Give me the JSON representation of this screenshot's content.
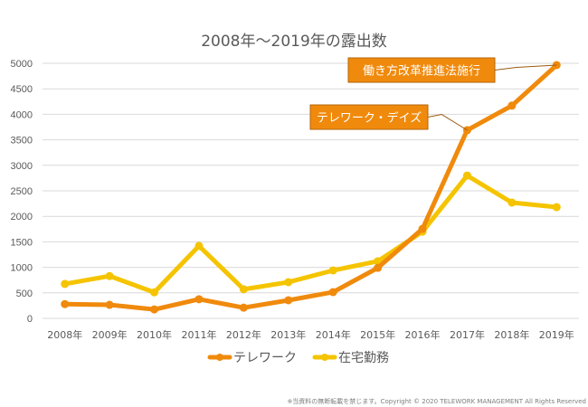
{
  "chart_data": {
    "type": "line",
    "title": "2008年～2019年の露出数",
    "xlabel": "",
    "ylabel": "",
    "categories": [
      "2008年",
      "2009年",
      "2010年",
      "2011年",
      "2012年",
      "2013年",
      "2014年",
      "2015年",
      "2016年",
      "2017年",
      "2018年",
      "2019年"
    ],
    "ylim": [
      0,
      5000
    ],
    "yticks": [
      0,
      500,
      1000,
      1500,
      2000,
      2500,
      3000,
      3500,
      4000,
      4500,
      5000
    ],
    "grid": true,
    "legend_position": "bottom",
    "series": [
      {
        "name": "テレワーク",
        "color": "#F08A0C",
        "values": [
          280,
          265,
          175,
          375,
          210,
          355,
          515,
          990,
          1755,
          3690,
          4170,
          4965
        ]
      },
      {
        "name": "在宅勤務",
        "color": "#F5C400",
        "values": [
          675,
          830,
          510,
          1420,
          570,
          710,
          940,
          1120,
          1700,
          2800,
          2270,
          2180
        ]
      }
    ],
    "annotations": [
      {
        "text": "テレワーク・デイズ",
        "series": 0,
        "category_index": 9,
        "fill": "#F08A0C"
      },
      {
        "text": "働き方改革推進法施行",
        "series": 0,
        "category_index": 11,
        "fill": "#F08A0C"
      }
    ]
  },
  "footer": {
    "copyright": "※当資料の無断転載を禁じます。Copyright © 2020  TELEWORK MANAGEMENT All Rights Reserved"
  }
}
